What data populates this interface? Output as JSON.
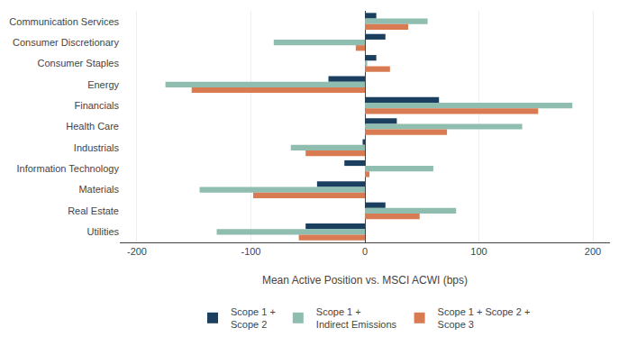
{
  "chart_data": {
    "type": "bar",
    "orientation": "horizontal",
    "categories": [
      "Communication Services",
      "Consumer Discretionary",
      "Consumer Staples",
      "Energy",
      "Financials",
      "Health Care",
      "Industrials",
      "Information Technology",
      "Materials",
      "Real Estate",
      "Utilities"
    ],
    "series": [
      {
        "name": "Scope 1 +\nScope 2",
        "color": "#1b3f5e",
        "values": [
          10,
          18,
          10,
          -32,
          65,
          28,
          -2,
          -18,
          -42,
          18,
          -52
        ]
      },
      {
        "name": "Scope 1 +\nIndirect Emissions",
        "color": "#8fbdb0",
        "values": [
          55,
          -80,
          2,
          -175,
          182,
          138,
          -65,
          60,
          -145,
          80,
          -130
        ]
      },
      {
        "name": "Scope 1 + Scope 2 +\nScope 3",
        "color": "#d97b52",
        "values": [
          38,
          -8,
          22,
          -152,
          152,
          72,
          -52,
          4,
          -98,
          48,
          -58
        ]
      }
    ],
    "xlabel": "Mean Active Position vs. MSCI ACWI (bps)",
    "xlim": [
      -215,
      215
    ],
    "xticks": [
      -200,
      -100,
      0,
      100,
      200
    ],
    "grid": true,
    "legend": "bottom"
  }
}
